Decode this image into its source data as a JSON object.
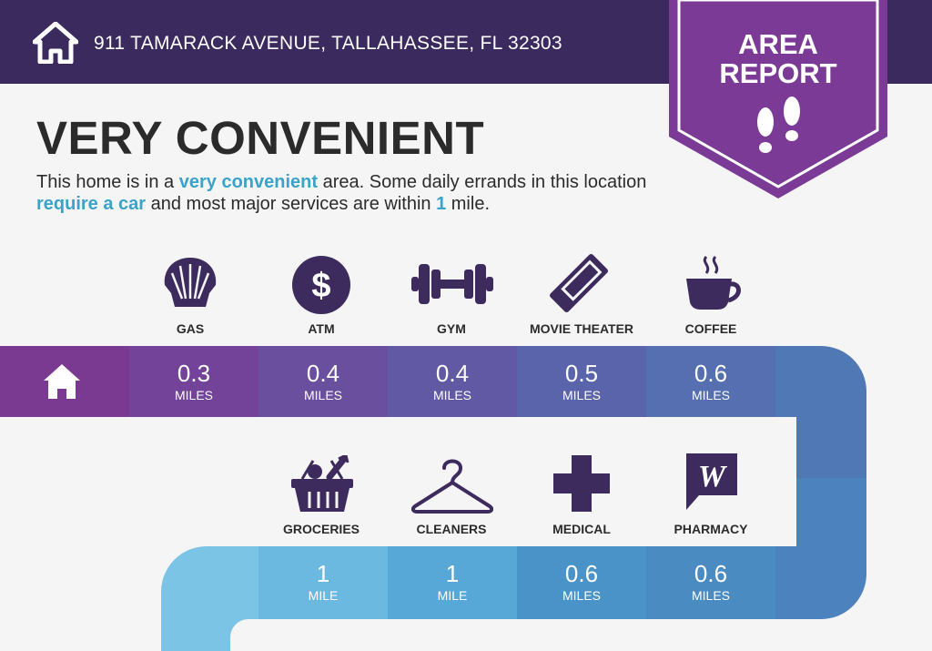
{
  "header": {
    "address": "911 TAMARACK AVENUE, TALLAHASSEE, FL 32303",
    "badge_line1": "AREA",
    "badge_line2": "REPORT"
  },
  "summary": {
    "headline": "VERY CONVENIENT",
    "text_1": "This home is in a ",
    "highlight_1": "very convenient",
    "text_2": " area. Some daily errands in this location ",
    "highlight_2": "require a car",
    "text_3": " and most major services are within ",
    "highlight_3": "1",
    "text_4": " mile."
  },
  "amenities_row1": [
    {
      "icon": "gas-shell-icon",
      "label": "GAS",
      "distance": "0.3",
      "unit": "MILES"
    },
    {
      "icon": "atm-dollar-icon",
      "label": "ATM",
      "distance": "0.4",
      "unit": "MILES"
    },
    {
      "icon": "dumbbell-icon",
      "label": "GYM",
      "distance": "0.4",
      "unit": "MILES"
    },
    {
      "icon": "ticket-icon",
      "label": "MOVIE THEATER",
      "distance": "0.5",
      "unit": "MILES"
    },
    {
      "icon": "coffee-cup-icon",
      "label": "COFFEE",
      "distance": "0.6",
      "unit": "MILES"
    }
  ],
  "amenities_row2": [
    {
      "icon": "grocery-basket-icon",
      "label": "GROCERIES",
      "distance": "1",
      "unit": "MILE"
    },
    {
      "icon": "hanger-icon",
      "label": "CLEANERS",
      "distance": "1",
      "unit": "MILE"
    },
    {
      "icon": "medical-cross-icon",
      "label": "MEDICAL",
      "distance": "0.6",
      "unit": "MILES"
    },
    {
      "icon": "pharmacy-w-icon",
      "label": "PHARMACY",
      "distance": "0.6",
      "unit": "MILES"
    }
  ],
  "colors": {
    "header_bg": "#3a2a5e",
    "badge": "#7b3a96",
    "icon": "#3d2b5e",
    "highlight": "#3aa3c8"
  }
}
